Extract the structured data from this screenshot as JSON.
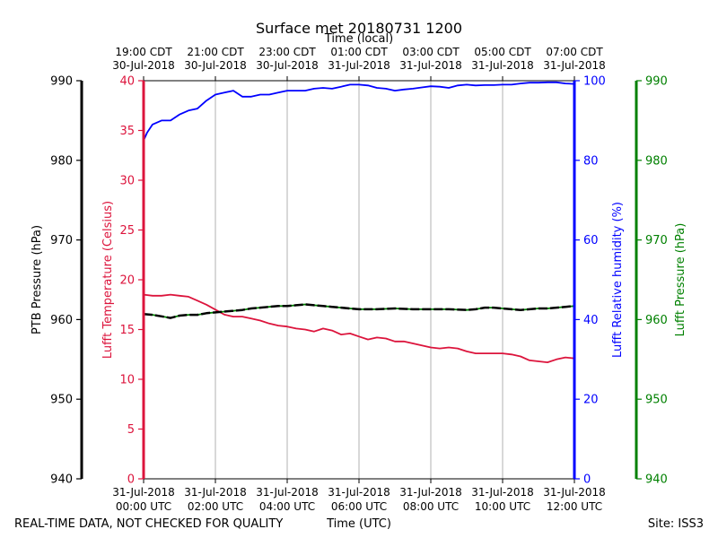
{
  "chart_data": {
    "type": "line",
    "title": "Surface met 20180731 1200",
    "top_axis_label": "Time (local)",
    "xlabel": "Time (UTC)",
    "footer_left": "REAL-TIME DATA, NOT CHECKED FOR QUALITY",
    "footer_right": "Site: ISS3",
    "x_range_hours_utc": [
      0,
      12
    ],
    "x_ticks_bottom": [
      {
        "h": 0,
        "l1": "31-Jul-2018",
        "l2": "00:00 UTC"
      },
      {
        "h": 2,
        "l1": "31-Jul-2018",
        "l2": "02:00 UTC"
      },
      {
        "h": 4,
        "l1": "31-Jul-2018",
        "l2": "04:00 UTC"
      },
      {
        "h": 6,
        "l1": "31-Jul-2018",
        "l2": "06:00 UTC"
      },
      {
        "h": 8,
        "l1": "31-Jul-2018",
        "l2": "08:00 UTC"
      },
      {
        "h": 10,
        "l1": "31-Jul-2018",
        "l2": "10:00 UTC"
      },
      {
        "h": 12,
        "l1": "31-Jul-2018",
        "l2": "12:00 UTC"
      }
    ],
    "x_ticks_top": [
      {
        "h": 0,
        "l1": "19:00 CDT",
        "l2": "30-Jul-2018"
      },
      {
        "h": 2,
        "l1": "21:00 CDT",
        "l2": "30-Jul-2018"
      },
      {
        "h": 4,
        "l1": "23:00 CDT",
        "l2": "30-Jul-2018"
      },
      {
        "h": 6,
        "l1": "01:00 CDT",
        "l2": "31-Jul-2018"
      },
      {
        "h": 8,
        "l1": "03:00 CDT",
        "l2": "31-Jul-2018"
      },
      {
        "h": 10,
        "l1": "05:00 CDT",
        "l2": "31-Jul-2018"
      },
      {
        "h": 12,
        "l1": "07:00 CDT",
        "l2": "31-Jul-2018"
      }
    ],
    "axes": {
      "ptb": {
        "label": "PTB Pressure (hPa)",
        "range": [
          940,
          990
        ],
        "ticks": [
          940,
          950,
          960,
          970,
          980,
          990
        ],
        "color": "#000000"
      },
      "temp": {
        "label": "Lufft Temperature (Celsius)",
        "range": [
          0,
          40
        ],
        "ticks": [
          0,
          5,
          10,
          15,
          20,
          25,
          30,
          35,
          40
        ],
        "color": "#dc143c"
      },
      "rh": {
        "label": "Lufft Relative humidity (%)",
        "range": [
          0,
          100
        ],
        "ticks": [
          0,
          20,
          40,
          60,
          80,
          100
        ],
        "color": "#0000ff"
      },
      "lufft_p": {
        "label": "Lufft Pressure (hPa)",
        "range": [
          940,
          990
        ],
        "ticks": [
          940,
          950,
          960,
          970,
          980,
          990
        ],
        "color": "#008000"
      }
    },
    "series": [
      {
        "name": "Lufft Temperature (Celsius)",
        "axis": "temp",
        "color": "#dc143c",
        "points": [
          [
            0,
            18.5
          ],
          [
            0.25,
            18.4
          ],
          [
            0.5,
            18.4
          ],
          [
            0.75,
            18.5
          ],
          [
            1,
            18.4
          ],
          [
            1.25,
            18.3
          ],
          [
            1.5,
            17.9
          ],
          [
            1.75,
            17.5
          ],
          [
            2,
            17.0
          ],
          [
            2.25,
            16.5
          ],
          [
            2.5,
            16.3
          ],
          [
            2.75,
            16.3
          ],
          [
            3,
            16.1
          ],
          [
            3.25,
            15.9
          ],
          [
            3.5,
            15.6
          ],
          [
            3.75,
            15.4
          ],
          [
            4,
            15.3
          ],
          [
            4.25,
            15.1
          ],
          [
            4.5,
            15.0
          ],
          [
            4.75,
            14.8
          ],
          [
            5,
            15.1
          ],
          [
            5.25,
            14.9
          ],
          [
            5.5,
            14.5
          ],
          [
            5.75,
            14.6
          ],
          [
            6,
            14.3
          ],
          [
            6.25,
            14.0
          ],
          [
            6.5,
            14.2
          ],
          [
            6.75,
            14.1
          ],
          [
            7,
            13.8
          ],
          [
            7.25,
            13.8
          ],
          [
            7.5,
            13.6
          ],
          [
            7.75,
            13.4
          ],
          [
            8,
            13.2
          ],
          [
            8.25,
            13.1
          ],
          [
            8.5,
            13.2
          ],
          [
            8.75,
            13.1
          ],
          [
            9,
            12.8
          ],
          [
            9.25,
            12.6
          ],
          [
            9.5,
            12.6
          ],
          [
            9.75,
            12.6
          ],
          [
            10,
            12.6
          ],
          [
            10.25,
            12.5
          ],
          [
            10.5,
            12.3
          ],
          [
            10.75,
            11.9
          ],
          [
            11,
            11.8
          ],
          [
            11.25,
            11.7
          ],
          [
            11.5,
            12.0
          ],
          [
            11.75,
            12.2
          ],
          [
            12,
            12.1
          ]
        ]
      },
      {
        "name": "Lufft Relative humidity (%)",
        "axis": "rh",
        "color": "#0000ff",
        "points": [
          [
            0,
            85
          ],
          [
            0.1,
            87
          ],
          [
            0.25,
            89
          ],
          [
            0.5,
            90
          ],
          [
            0.75,
            90
          ],
          [
            1,
            91.5
          ],
          [
            1.25,
            92.5
          ],
          [
            1.5,
            93
          ],
          [
            1.75,
            95
          ],
          [
            2,
            96.5
          ],
          [
            2.25,
            97
          ],
          [
            2.5,
            97.5
          ],
          [
            2.75,
            96
          ],
          [
            3,
            96
          ],
          [
            3.25,
            96.5
          ],
          [
            3.5,
            96.5
          ],
          [
            3.75,
            97
          ],
          [
            4,
            97.5
          ],
          [
            4.25,
            97.5
          ],
          [
            4.5,
            97.5
          ],
          [
            4.75,
            98
          ],
          [
            5,
            98.2
          ],
          [
            5.25,
            98
          ],
          [
            5.5,
            98.5
          ],
          [
            5.75,
            99
          ],
          [
            6,
            99
          ],
          [
            6.25,
            98.8
          ],
          [
            6.5,
            98.2
          ],
          [
            6.75,
            98
          ],
          [
            7,
            97.5
          ],
          [
            7.25,
            97.8
          ],
          [
            7.5,
            98
          ],
          [
            7.75,
            98.3
          ],
          [
            8,
            98.6
          ],
          [
            8.25,
            98.5
          ],
          [
            8.5,
            98.2
          ],
          [
            8.75,
            98.8
          ],
          [
            9,
            99
          ],
          [
            9.25,
            98.8
          ],
          [
            9.5,
            98.9
          ],
          [
            9.75,
            98.9
          ],
          [
            10,
            99
          ],
          [
            10.25,
            99
          ],
          [
            10.5,
            99.3
          ],
          [
            10.75,
            99.5
          ],
          [
            11,
            99.5
          ],
          [
            11.25,
            99.6
          ],
          [
            11.5,
            99.6
          ],
          [
            11.75,
            99.3
          ],
          [
            12,
            99.2
          ]
        ]
      },
      {
        "name": "Lufft Pressure (hPa)",
        "axis": "lufft_p",
        "color": "#008000",
        "points": [
          [
            0,
            960.7
          ],
          [
            0.25,
            960.6
          ],
          [
            0.5,
            960.4
          ],
          [
            0.75,
            960.2
          ],
          [
            1,
            960.5
          ],
          [
            1.25,
            960.6
          ],
          [
            1.5,
            960.6
          ],
          [
            1.75,
            960.8
          ],
          [
            2,
            960.9
          ],
          [
            2.25,
            961.0
          ],
          [
            2.5,
            961.1
          ],
          [
            2.75,
            961.2
          ],
          [
            3,
            961.4
          ],
          [
            3.25,
            961.5
          ],
          [
            3.5,
            961.6
          ],
          [
            3.75,
            961.7
          ],
          [
            4,
            961.7
          ],
          [
            4.25,
            961.8
          ],
          [
            4.5,
            961.9
          ],
          [
            4.75,
            961.8
          ],
          [
            5,
            961.7
          ],
          [
            5.25,
            961.6
          ],
          [
            5.5,
            961.5
          ],
          [
            5.75,
            961.4
          ],
          [
            6,
            961.3
          ],
          [
            6.5,
            961.3
          ],
          [
            7,
            961.4
          ],
          [
            7.5,
            961.3
          ],
          [
            8,
            961.3
          ],
          [
            8.5,
            961.3
          ],
          [
            9,
            961.2
          ],
          [
            9.25,
            961.3
          ],
          [
            9.5,
            961.5
          ],
          [
            9.75,
            961.5
          ],
          [
            10,
            961.4
          ],
          [
            10.25,
            961.3
          ],
          [
            10.5,
            961.2
          ],
          [
            10.75,
            961.3
          ],
          [
            11,
            961.4
          ],
          [
            11.25,
            961.4
          ],
          [
            11.5,
            961.5
          ],
          [
            11.75,
            961.6
          ],
          [
            12,
            961.7
          ]
        ]
      },
      {
        "name": "PTB Pressure (hPa)",
        "axis": "ptb",
        "color": "#000000",
        "points": [
          [
            0,
            960.7
          ],
          [
            0.25,
            960.6
          ],
          [
            0.5,
            960.4
          ],
          [
            0.75,
            960.2
          ],
          [
            1,
            960.5
          ],
          [
            1.25,
            960.6
          ],
          [
            1.5,
            960.6
          ],
          [
            1.75,
            960.8
          ],
          [
            2,
            960.9
          ],
          [
            2.25,
            961.0
          ],
          [
            2.5,
            961.1
          ],
          [
            2.75,
            961.2
          ],
          [
            3,
            961.4
          ],
          [
            3.25,
            961.5
          ],
          [
            3.5,
            961.6
          ],
          [
            3.75,
            961.7
          ],
          [
            4,
            961.7
          ],
          [
            4.25,
            961.8
          ],
          [
            4.5,
            961.9
          ],
          [
            4.75,
            961.8
          ],
          [
            5,
            961.7
          ],
          [
            5.25,
            961.6
          ],
          [
            5.5,
            961.5
          ],
          [
            5.75,
            961.4
          ],
          [
            6,
            961.3
          ],
          [
            6.5,
            961.3
          ],
          [
            7,
            961.4
          ],
          [
            7.5,
            961.3
          ],
          [
            8,
            961.3
          ],
          [
            8.5,
            961.3
          ],
          [
            9,
            961.2
          ],
          [
            9.25,
            961.3
          ],
          [
            9.5,
            961.5
          ],
          [
            9.75,
            961.5
          ],
          [
            10,
            961.4
          ],
          [
            10.25,
            961.3
          ],
          [
            10.5,
            961.2
          ],
          [
            10.75,
            961.3
          ],
          [
            11,
            961.4
          ],
          [
            11.25,
            961.4
          ],
          [
            11.5,
            961.5
          ],
          [
            11.75,
            961.6
          ],
          [
            12,
            961.7
          ]
        ]
      }
    ]
  }
}
